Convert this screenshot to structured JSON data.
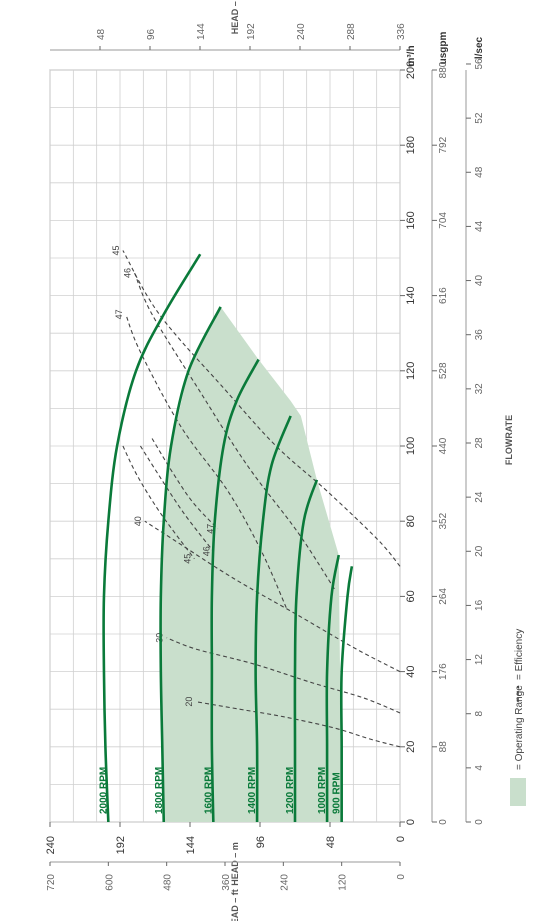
{
  "chart_data": {
    "type": "line",
    "orientation": "rotated-90",
    "x_axis": {
      "title": "FLOWRATE",
      "unit": "m³/h",
      "range": [
        0,
        200
      ],
      "ticks": [
        0,
        20,
        40,
        60,
        80,
        100,
        120,
        140,
        160,
        180,
        200
      ],
      "secondary": [
        {
          "unit": "usgpm",
          "ticks": [
            "0",
            "88",
            "176",
            "264",
            "352",
            "440",
            "528",
            "616",
            "704",
            "792",
            "880"
          ]
        },
        {
          "unit": "l/sec",
          "ticks": [
            "0",
            "4",
            "8",
            "12",
            "16",
            "20",
            "24",
            "28",
            "32",
            "36",
            "40",
            "44",
            "48",
            "52",
            "56"
          ]
        }
      ]
    },
    "y_axis": {
      "title": "HEAD – m",
      "range": [
        0,
        240
      ],
      "ticks": [
        0,
        48,
        96,
        144,
        192,
        240
      ],
      "secondary": [
        {
          "title": "HEAD – ft",
          "ticks": [
            "0",
            "120",
            "240",
            "360",
            "480",
            "600",
            "720"
          ]
        },
        {
          "title": "HEAD – psi",
          "ticks": [
            "48",
            "96",
            "144",
            "192",
            "240",
            "288",
            "336"
          ]
        }
      ]
    },
    "grid": true,
    "speed_curves": [
      {
        "label": "2000 RPM",
        "points": [
          [
            0,
            200
          ],
          [
            20,
            202
          ],
          [
            40,
            203
          ],
          [
            60,
            203
          ],
          [
            80,
            200
          ],
          [
            100,
            194
          ],
          [
            120,
            181
          ],
          [
            135,
            162
          ],
          [
            151,
            137
          ]
        ]
      },
      {
        "label": "1800 RPM",
        "points": [
          [
            0,
            162
          ],
          [
            20,
            163
          ],
          [
            40,
            164
          ],
          [
            60,
            164
          ],
          [
            80,
            162
          ],
          [
            100,
            157
          ],
          [
            120,
            145
          ],
          [
            137,
            123
          ]
        ]
      },
      {
        "label": "1600 RPM",
        "points": [
          [
            0,
            128
          ],
          [
            20,
            129
          ],
          [
            40,
            129
          ],
          [
            60,
            129
          ],
          [
            80,
            127
          ],
          [
            100,
            121
          ],
          [
            112,
            112
          ],
          [
            123,
            97
          ]
        ]
      },
      {
        "label": "1400 RPM",
        "points": [
          [
            0,
            98
          ],
          [
            20,
            98
          ],
          [
            40,
            99
          ],
          [
            60,
            98
          ],
          [
            80,
            94
          ],
          [
            95,
            88
          ],
          [
            108,
            75
          ]
        ]
      },
      {
        "label": "1200 RPM",
        "points": [
          [
            0,
            72
          ],
          [
            20,
            72
          ],
          [
            40,
            72
          ],
          [
            60,
            71
          ],
          [
            80,
            66
          ],
          [
            91,
            57
          ]
        ]
      },
      {
        "label": "1000 RPM",
        "points": [
          [
            0,
            50
          ],
          [
            20,
            50
          ],
          [
            40,
            50
          ],
          [
            60,
            47
          ],
          [
            71,
            42
          ]
        ]
      },
      {
        "label": "900 RPM",
        "points": [
          [
            0,
            40
          ],
          [
            20,
            40
          ],
          [
            40,
            40
          ],
          [
            60,
            36
          ],
          [
            68,
            33
          ]
        ]
      }
    ],
    "efficiency_lines": [
      {
        "label": "20",
        "points": [
          [
            20,
            0
          ],
          [
            22,
            20
          ],
          [
            25,
            45
          ],
          [
            28,
            80
          ],
          [
            30,
            110
          ],
          [
            32,
            140
          ]
        ]
      },
      {
        "label": "30",
        "points": [
          [
            29,
            0
          ],
          [
            33,
            25
          ],
          [
            37,
            60
          ],
          [
            42,
            100
          ],
          [
            46,
            140
          ],
          [
            49,
            160
          ]
        ]
      },
      {
        "label": "40",
        "points": [
          [
            40,
            0
          ],
          [
            46,
            30
          ],
          [
            55,
            70
          ],
          [
            65,
            115
          ],
          [
            75,
            155
          ],
          [
            80,
            175
          ]
        ]
      },
      {
        "label": "45",
        "points": [
          [
            68,
            0
          ],
          [
            75,
            15
          ],
          [
            88,
            50
          ],
          [
            100,
            85
          ],
          [
            115,
            120
          ],
          [
            135,
            165
          ],
          [
            152,
            190
          ]
        ]
      },
      {
        "label": "46",
        "points": [
          [
            62,
            45
          ],
          [
            77,
            70
          ],
          [
            95,
            105
          ],
          [
            115,
            138
          ],
          [
            135,
            170
          ],
          [
            146,
            182
          ]
        ]
      },
      {
        "label": "47",
        "points": [
          [
            57,
            78
          ],
          [
            72,
            95
          ],
          [
            88,
            118
          ],
          [
            105,
            150
          ],
          [
            125,
            178
          ],
          [
            135,
            188
          ]
        ]
      },
      {
        "label": "46",
        "points": [
          [
            100,
            178
          ],
          [
            92,
            165
          ],
          [
            82,
            148
          ],
          [
            72,
            128
          ]
        ]
      },
      {
        "label": "45",
        "points": [
          [
            100,
            190
          ],
          [
            92,
            180
          ],
          [
            82,
            164
          ],
          [
            70,
            141
          ]
        ]
      },
      {
        "label": "47",
        "points": [
          [
            102,
            170
          ],
          [
            93,
            156
          ],
          [
            85,
            142
          ],
          [
            78,
            125
          ]
        ]
      }
    ],
    "operating_range": {
      "points": [
        [
          0,
          162
        ],
        [
          20,
          163
        ],
        [
          40,
          164
        ],
        [
          60,
          164
        ],
        [
          80,
          162
        ],
        [
          100,
          157
        ],
        [
          120,
          145
        ],
        [
          137,
          123
        ],
        [
          123,
          97
        ],
        [
          112,
          75
        ],
        [
          108,
          68
        ],
        [
          91,
          57
        ],
        [
          71,
          42
        ],
        [
          0,
          40
        ]
      ]
    }
  },
  "legend": {
    "operating_range": "= Operating Range",
    "efficiency": "= Efficiency",
    "operating_color": "#c9dfcc",
    "curve_color": "#0a7a3a"
  }
}
